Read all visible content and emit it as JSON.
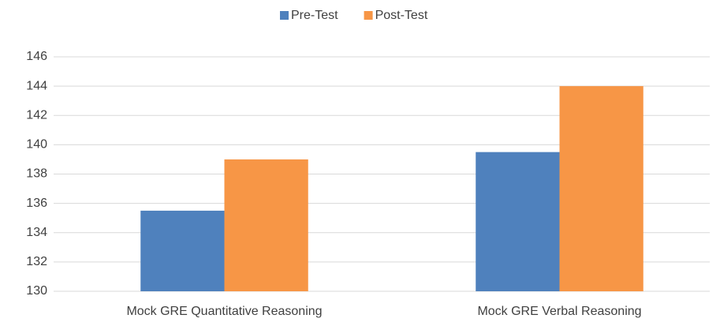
{
  "chart_data": {
    "type": "bar",
    "categories": [
      "Mock GRE Quantitative Reasoning",
      "Mock GRE Verbal Reasoning"
    ],
    "series": [
      {
        "name": "Pre-Test",
        "color": "#4f81bd",
        "values": [
          135.5,
          139.5
        ]
      },
      {
        "name": "Post-Test",
        "color": "#f79646",
        "values": [
          139,
          144
        ]
      }
    ],
    "ylim": [
      130,
      146
    ],
    "yticks": [
      130,
      132,
      134,
      136,
      138,
      140,
      142,
      144,
      146
    ],
    "grid": true,
    "legend": "top"
  }
}
